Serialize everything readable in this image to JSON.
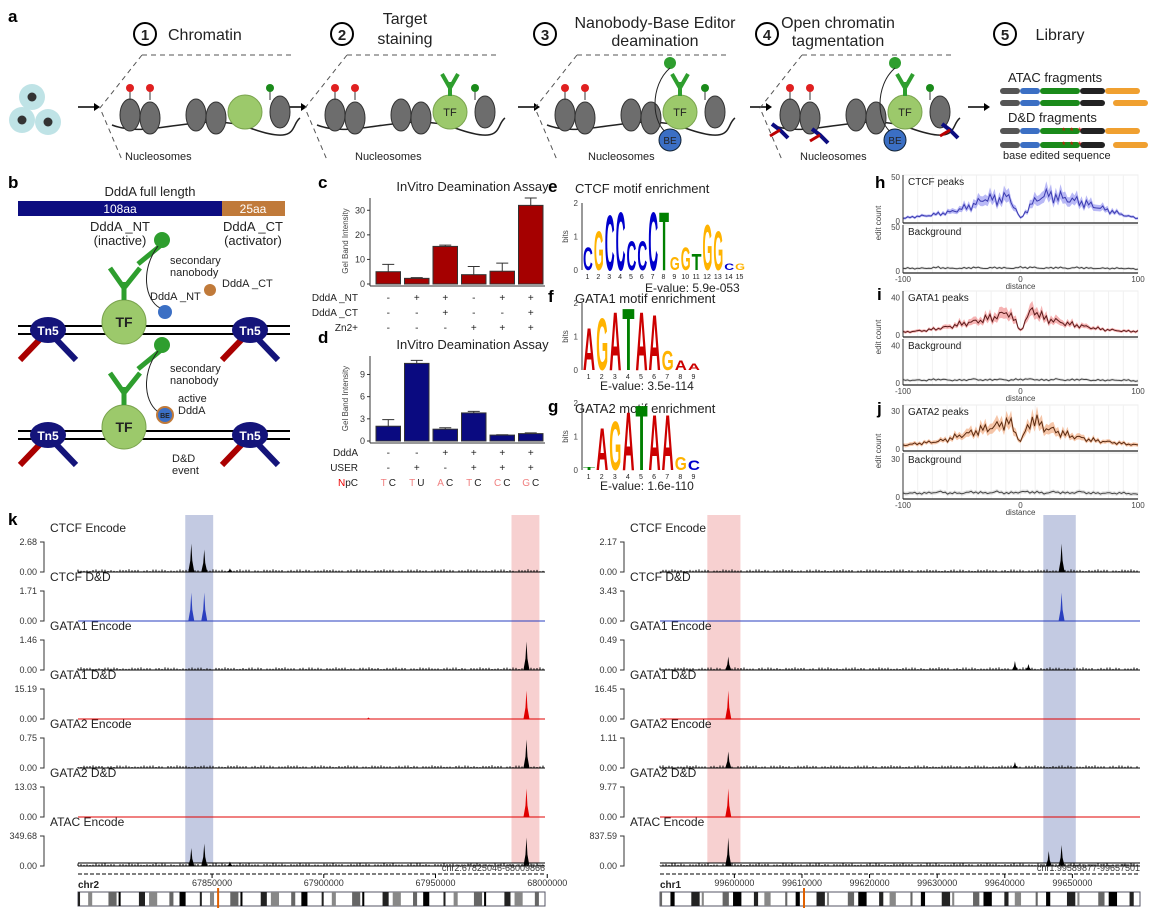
{
  "panel_labels": {
    "a": "a",
    "b": "b",
    "c": "c",
    "d": "d",
    "e": "e",
    "f": "f",
    "g": "g",
    "h": "h",
    "i": "i",
    "j": "j",
    "k": "k"
  },
  "panel_a": {
    "steps": [
      {
        "num": "1",
        "label": "Chromatin"
      },
      {
        "num": "2",
        "label": "Target",
        "label2": "staining"
      },
      {
        "num": "3",
        "label": "Nanobody-Base Editor",
        "label2": "deamination"
      },
      {
        "num": "4",
        "label": "Open chromatin",
        "label2": "tagmentation"
      },
      {
        "num": "5",
        "label": "Library"
      }
    ],
    "nucleosomes_label": "Nucleosomes",
    "tf_label": "TF",
    "be_label": "BE",
    "atac_label": "ATAC fragments",
    "dd_label": "D&D fragments",
    "base_edited_label": "base edited sequence"
  },
  "panel_b": {
    "title": "DddA full length",
    "nt_len": "108aa",
    "ct_len": "25aa",
    "nt_name": "DddA _NT",
    "nt_state": "(inactive)",
    "ct_name": "DddA _CT",
    "ct_state": "(activator)",
    "tn5": "Tn5",
    "tf": "TF",
    "secondary1": "secondary",
    "secondary2": "nanobody",
    "ddda_nt": "DddA _NT",
    "ddda_ct": "DddA _CT",
    "active1": "active",
    "active2": "DddA",
    "be": "BE",
    "event1": "D&D",
    "event2": "event",
    "colors": {
      "nt": "#0d0d80",
      "ct": "#c07a3a",
      "tn5": "#14147a",
      "tf": "#9cc96b",
      "antibody": "#2e9e2e"
    }
  },
  "chart_data": [
    {
      "id": "c",
      "type": "bar",
      "title": "InVitro Deamination Assay",
      "ylabel": "Gel Band Intensity",
      "ylim": [
        0,
        35
      ],
      "yticks": [
        0,
        10,
        20,
        30
      ],
      "color": "#a50000",
      "values": [
        5.0,
        2.3,
        15.3,
        3.8,
        5.2,
        32.0
      ],
      "errors": [
        3.0,
        0.3,
        0.5,
        3.3,
        3.3,
        3.0
      ],
      "conditions": [
        {
          "name": "DddA _NT",
          "values": [
            "-",
            "+",
            "+",
            "-",
            "+",
            "+"
          ]
        },
        {
          "name": "DddA _CT",
          "values": [
            "-",
            "-",
            "+",
            "-",
            "-",
            "+"
          ]
        },
        {
          "name": "Zn2+",
          "values": [
            "-",
            "-",
            "-",
            "+",
            "+",
            "+"
          ]
        }
      ]
    },
    {
      "id": "d",
      "type": "bar",
      "title": "InVitro Deamination Assay",
      "ylabel": "Gel Band Intensity",
      "ylim": [
        0,
        11.5
      ],
      "yticks": [
        0,
        3,
        6,
        9
      ],
      "color": "#0a0a80",
      "values": [
        2.0,
        10.5,
        1.6,
        3.8,
        0.8,
        1.0
      ],
      "errors": [
        0.9,
        0.4,
        0.2,
        0.2,
        0.05,
        0.1
      ],
      "conditions": [
        {
          "name": "DddA",
          "values": [
            "-",
            "-",
            "+",
            "+",
            "+",
            "+"
          ]
        },
        {
          "name": "USER",
          "values": [
            "-",
            "+",
            "-",
            "+",
            "+",
            "+"
          ]
        }
      ],
      "npc_label_n": "N",
      "npc_label_rest": "pC",
      "npc": [
        [
          "T",
          "C"
        ],
        [
          "T",
          "U"
        ],
        [
          "A",
          "C"
        ],
        [
          "T",
          "C"
        ],
        [
          "C",
          "C"
        ],
        [
          "G",
          "C"
        ]
      ]
    },
    {
      "id": "e",
      "type": "sequence-logo",
      "title": "CTCF motif enrichment",
      "ylabel": "bits",
      "ylim": [
        0,
        2
      ],
      "evalue": "E-value: 5.9e-053",
      "letters": [
        "C",
        "G",
        "C",
        "C",
        "C",
        "C",
        "C",
        "T",
        "G",
        "G",
        "T",
        "G",
        "G",
        "C",
        "G"
      ],
      "heights": [
        0.7,
        1.2,
        1.7,
        1.8,
        0.9,
        0.9,
        1.8,
        1.8,
        0.4,
        0.7,
        0.5,
        1.4,
        1.2,
        0.2,
        0.2
      ]
    },
    {
      "id": "f",
      "type": "sequence-logo",
      "title": "GATA1 motif enrichment",
      "ylabel": "bits",
      "ylim": [
        0,
        2
      ],
      "evalue": "E-value: 3.5e-114",
      "letters": [
        "A",
        "G",
        "A",
        "T",
        "A",
        "A",
        "G",
        "A",
        "A"
      ],
      "heights": [
        1.3,
        1.6,
        1.8,
        1.9,
        1.8,
        1.7,
        0.6,
        0.3,
        0.2
      ]
    },
    {
      "id": "g",
      "type": "sequence-logo",
      "title": "GATA2 motif enrichment",
      "ylabel": "bits",
      "ylim": [
        0,
        2
      ],
      "evalue": "E-value: 1.6e-110",
      "letters": [
        "T",
        "A",
        "G",
        "A",
        "T",
        "A",
        "A",
        "G",
        "C"
      ],
      "heights": [
        0.1,
        1.3,
        1.5,
        1.8,
        2.0,
        1.7,
        1.7,
        0.4,
        0.3
      ]
    },
    {
      "id": "h",
      "type": "line",
      "title": "CTCF peaks",
      "background_title": "Background",
      "xlabel": "distance",
      "ylabel": "edit count",
      "xlim": [
        -100,
        100
      ],
      "xticks": [
        -100,
        0,
        100
      ],
      "ylim": [
        0,
        50
      ],
      "yticks": [
        0,
        50
      ],
      "color": "#3b3bb0",
      "fill": "#8a8af0",
      "x": [
        -100,
        -90,
        -80,
        -70,
        -60,
        -50,
        -40,
        -30,
        -20,
        -10,
        0,
        10,
        20,
        30,
        40,
        50,
        60,
        70,
        80,
        90,
        100
      ],
      "values": [
        3,
        5,
        6,
        8,
        10,
        14,
        18,
        26,
        24,
        28,
        3,
        20,
        30,
        28,
        25,
        22,
        18,
        14,
        10,
        6,
        3
      ],
      "background": [
        3,
        3,
        3,
        4,
        3,
        3,
        4,
        3,
        4,
        3,
        4,
        4,
        3,
        4,
        3,
        4,
        3,
        3,
        3,
        3,
        2
      ]
    },
    {
      "id": "i",
      "type": "line",
      "title": "GATA1 peaks",
      "background_title": "Background",
      "xlabel": "distance",
      "ylabel": "edit count",
      "xlim": [
        -100,
        100
      ],
      "xticks": [
        -100,
        0,
        100
      ],
      "ylim": [
        0,
        45
      ],
      "yticks": [
        0,
        40
      ],
      "color": "#5a1a1a",
      "fill": "#f08080",
      "x": [
        -100,
        -90,
        -80,
        -70,
        -60,
        -50,
        -40,
        -30,
        -20,
        -10,
        0,
        10,
        20,
        30,
        40,
        50,
        60,
        70,
        80,
        90,
        100
      ],
      "values": [
        3,
        4,
        5,
        7,
        9,
        12,
        14,
        17,
        20,
        25,
        5,
        28,
        18,
        15,
        12,
        10,
        8,
        6,
        5,
        4,
        4
      ],
      "background": [
        3,
        3,
        3,
        4,
        3,
        3,
        4,
        3,
        4,
        3,
        4,
        4,
        3,
        4,
        3,
        4,
        3,
        3,
        3,
        3,
        2
      ]
    },
    {
      "id": "j",
      "type": "line",
      "title": "GATA2 peaks",
      "background_title": "Background",
      "xlabel": "distance",
      "ylabel": "edit count",
      "xlim": [
        -100,
        100
      ],
      "xticks": [
        -100,
        0,
        100
      ],
      "ylim": [
        0,
        33
      ],
      "yticks": [
        0,
        30
      ],
      "color": "#5a2a10",
      "fill": "#f0a070",
      "x": [
        -100,
        -90,
        -80,
        -70,
        -60,
        -50,
        -40,
        -30,
        -20,
        -10,
        0,
        10,
        20,
        30,
        40,
        50,
        60,
        70,
        80,
        90,
        100
      ],
      "values": [
        3,
        4,
        5,
        6,
        8,
        11,
        13,
        16,
        18,
        22,
        6,
        24,
        17,
        14,
        11,
        9,
        7,
        6,
        5,
        4,
        3
      ],
      "background": [
        3,
        3,
        3,
        4,
        3,
        3,
        4,
        3,
        4,
        3,
        4,
        4,
        3,
        4,
        3,
        4,
        3,
        3,
        3,
        3,
        2
      ]
    }
  ],
  "panel_k": {
    "left": {
      "chrom": "chr2",
      "region": "chr2:67825046-68009866",
      "xticks": [
        67850000,
        67900000,
        67950000,
        68000000
      ],
      "xrange": [
        67790000,
        67999000
      ],
      "blue_region": [
        67838000,
        67850500
      ],
      "red_region": [
        67984000,
        67996500
      ],
      "tracks": [
        {
          "label": "CTCF Encode",
          "max": "2.68",
          "zero": "0.00",
          "color": "#000000",
          "peaks": [
            [
              67840700,
              0.95
            ],
            [
              67846500,
              0.75
            ],
            [
              67858000,
              0.12
            ]
          ]
        },
        {
          "label": "CTCF D&D",
          "max": "1.71",
          "zero": "0.00",
          "color": "#2a3fbf",
          "peaks": [
            [
              67840700,
              0.95
            ],
            [
              67846500,
              0.95
            ]
          ]
        },
        {
          "label": "GATA1 Encode",
          "max": "1.46",
          "zero": "0.00",
          "color": "#000000",
          "peaks": [
            [
              67990700,
              0.95
            ]
          ]
        },
        {
          "label": "GATA1 D&D",
          "max": "15.19",
          "zero": "0.00",
          "color": "#e00000",
          "peaks": [
            [
              67990700,
              0.95
            ],
            [
              67920000,
              0.05
            ]
          ]
        },
        {
          "label": "GATA2 Encode",
          "max": "0.75",
          "zero": "0.00",
          "color": "#000000",
          "peaks": [
            [
              67990700,
              0.95
            ]
          ]
        },
        {
          "label": "GATA2 D&D",
          "max": "13.03",
          "zero": "0.00",
          "color": "#e00000",
          "peaks": [
            [
              67990700,
              0.95
            ]
          ]
        },
        {
          "label": "ATAC Encode",
          "max": "349.68",
          "zero": "0.00",
          "color": "#000000",
          "peaks": [
            [
              67840700,
              0.6
            ],
            [
              67846500,
              0.75
            ],
            [
              67858000,
              0.15
            ],
            [
              67990700,
              0.95
            ]
          ]
        }
      ]
    },
    "right": {
      "chrom": "chr1",
      "region": "chr1:99589877-99657501",
      "xticks": [
        99600000,
        99610000,
        99620000,
        99630000,
        99640000,
        99650000
      ],
      "xrange": [
        99589000,
        99660000
      ],
      "blue_region": [
        99645700,
        99650500
      ],
      "red_region": [
        99596000,
        99600900
      ],
      "tracks": [
        {
          "label": "CTCF Encode",
          "max": "2.17",
          "zero": "0.00",
          "color": "#000000",
          "peaks": [
            [
              99648400,
              0.95
            ]
          ]
        },
        {
          "label": "CTCF D&D",
          "max": "3.43",
          "zero": "0.00",
          "color": "#2a3fbf",
          "peaks": [
            [
              99648400,
              0.95
            ]
          ]
        },
        {
          "label": "GATA1 Encode",
          "max": "0.49",
          "zero": "0.00",
          "color": "#000000",
          "peaks": [
            [
              99599100,
              0.45
            ],
            [
              99641500,
              0.3
            ],
            [
              99643500,
              0.2
            ]
          ]
        },
        {
          "label": "GATA1 D&D",
          "max": "16.45",
          "zero": "0.00",
          "color": "#e00000",
          "peaks": [
            [
              99599100,
              0.95
            ]
          ]
        },
        {
          "label": "GATA2 Encode",
          "max": "1.11",
          "zero": "0.00",
          "color": "#000000",
          "peaks": [
            [
              99599100,
              0.55
            ],
            [
              99641500,
              0.2
            ]
          ]
        },
        {
          "label": "GATA2 D&D",
          "max": "9.77",
          "zero": "0.00",
          "color": "#e00000",
          "peaks": [
            [
              99599100,
              0.95
            ]
          ]
        },
        {
          "label": "ATAC Encode",
          "max": "837.59",
          "zero": "0.00",
          "color": "#000000",
          "peaks": [
            [
              99599100,
              0.95
            ],
            [
              99646500,
              0.5
            ],
            [
              99648400,
              0.7
            ]
          ]
        }
      ]
    }
  }
}
